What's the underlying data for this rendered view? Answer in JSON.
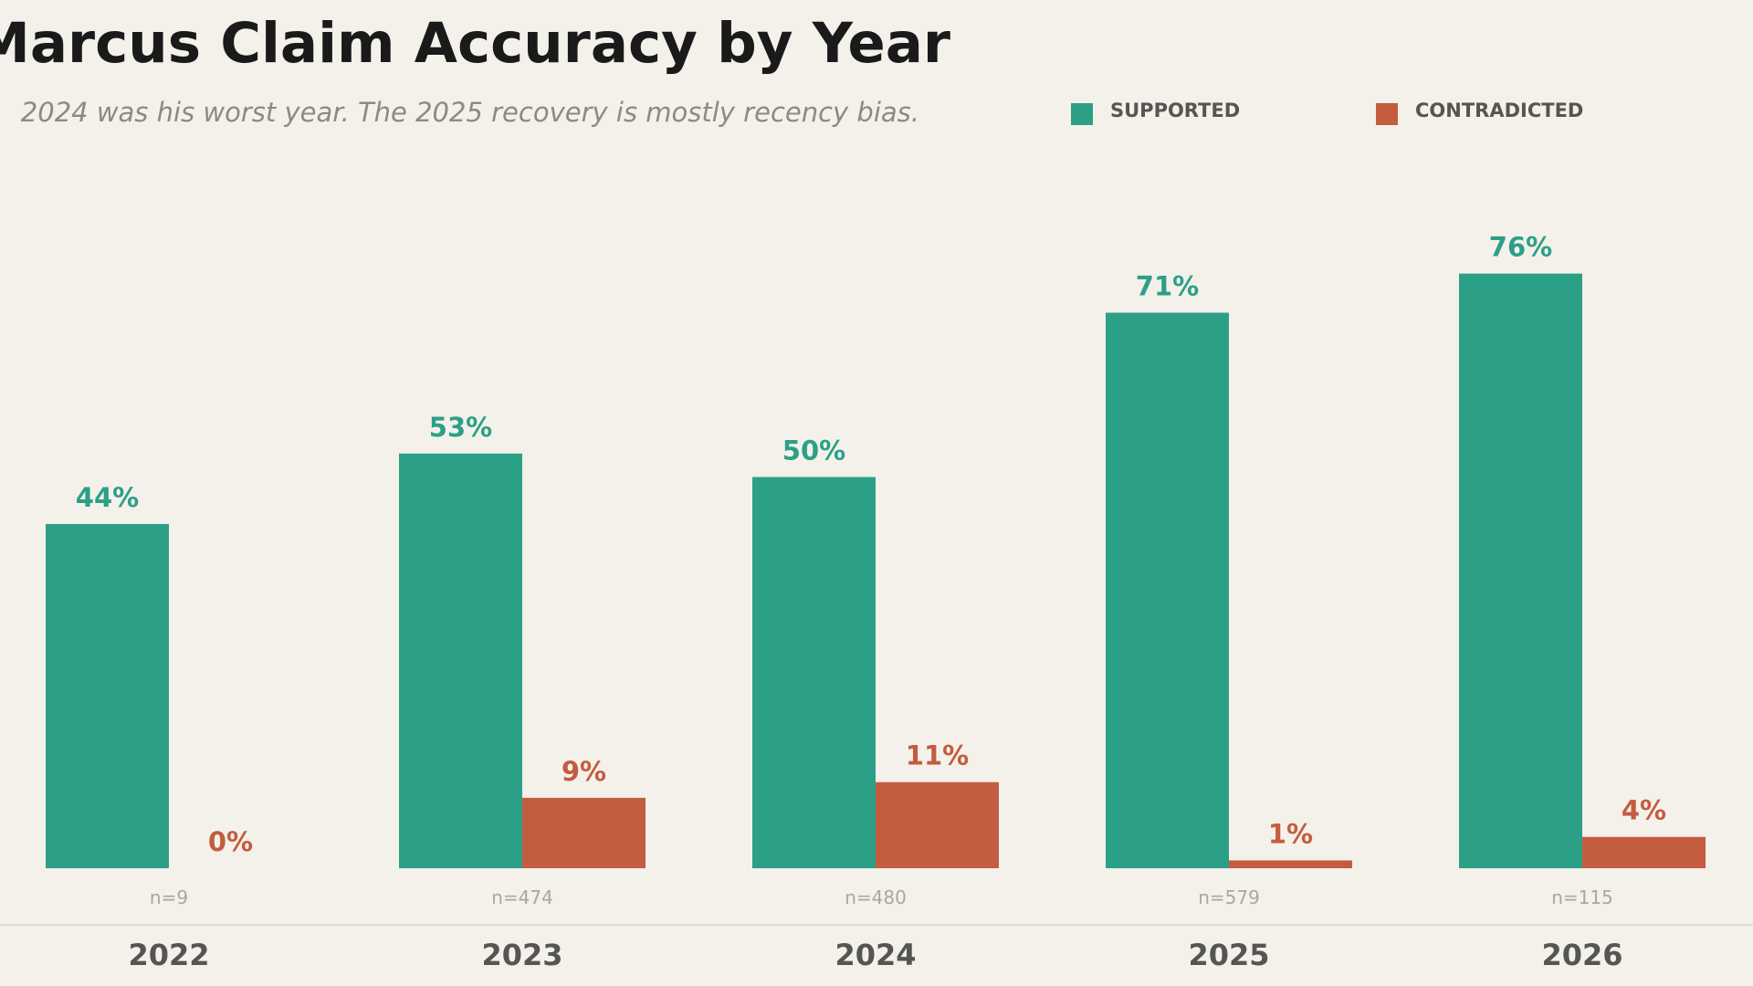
{
  "chart_data": {
    "type": "bar",
    "title": "Marcus Claim Accuracy by Year",
    "subtitle": "2024 was his worst year. The 2025 recovery is mostly recency bias.",
    "categories": [
      "2022",
      "2023",
      "2024",
      "2025",
      "2026"
    ],
    "sample_labels": [
      "n=9",
      "n=474",
      "n=480",
      "n=579",
      "n=115"
    ],
    "series": [
      {
        "name": "SUPPORTED",
        "color": "#2ca087",
        "values": [
          44,
          53,
          50,
          71,
          76
        ],
        "value_labels": [
          "44%",
          "53%",
          "50%",
          "71%",
          "76%"
        ]
      },
      {
        "name": "CONTRADICTED",
        "color": "#c45c3f",
        "values": [
          0,
          9,
          11,
          1,
          4
        ],
        "value_labels": [
          "0%",
          "9%",
          "11%",
          "1%",
          "4%"
        ]
      }
    ]
  }
}
